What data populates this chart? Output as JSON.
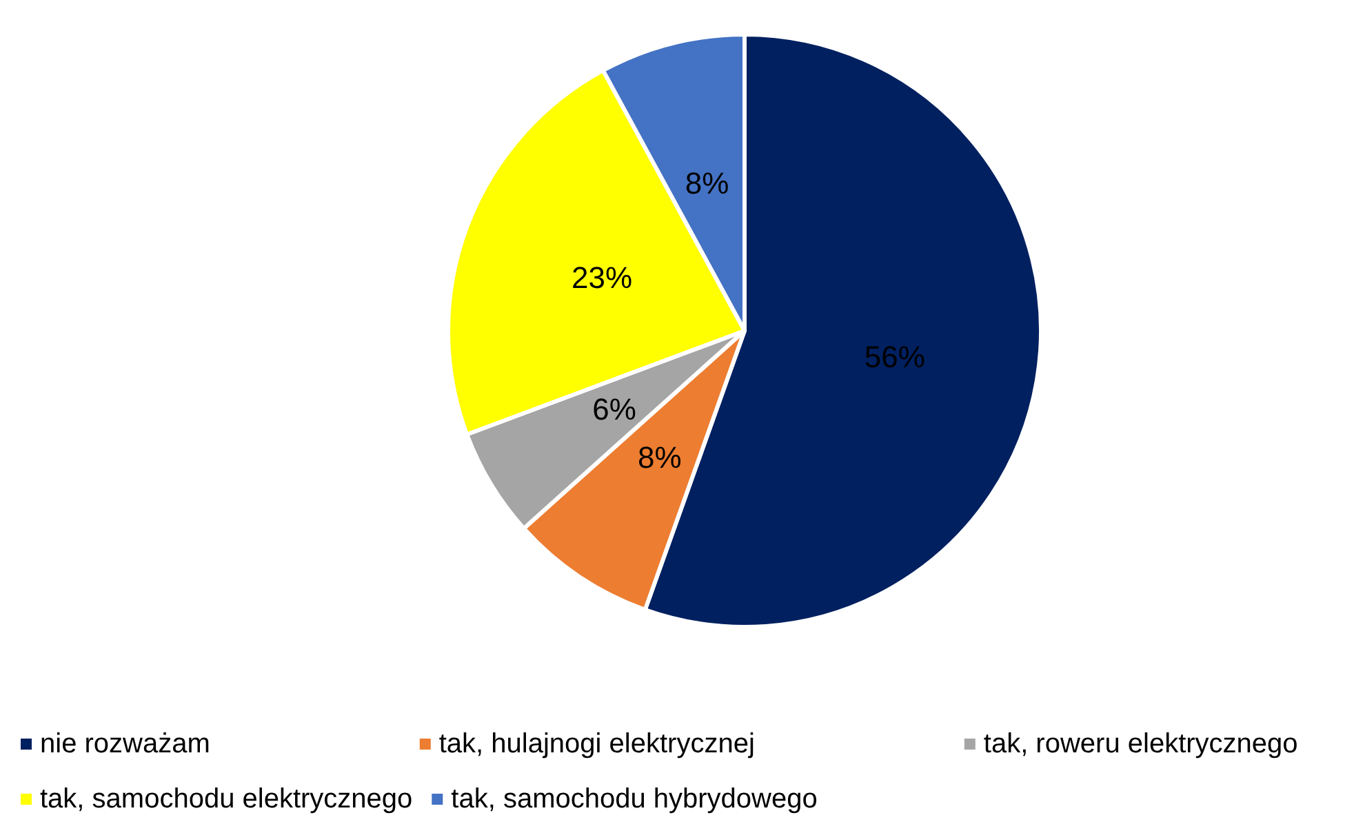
{
  "chart_data": {
    "type": "pie",
    "categories": [
      "nie rozważam",
      "tak, hulajnogi elektrycznej",
      "tak, roweru elektrycznego",
      "tak, samochodu elektrycznego",
      "tak, samochodu hybrydowego"
    ],
    "values": [
      56,
      8,
      6,
      23,
      8
    ],
    "value_labels": [
      "56%",
      "8%",
      "6%",
      "23%",
      "8%"
    ],
    "colors": [
      "#002060",
      "#ed7d31",
      "#a5a5a5",
      "#ffff00",
      "#4472c4"
    ],
    "legend": "bottom"
  }
}
